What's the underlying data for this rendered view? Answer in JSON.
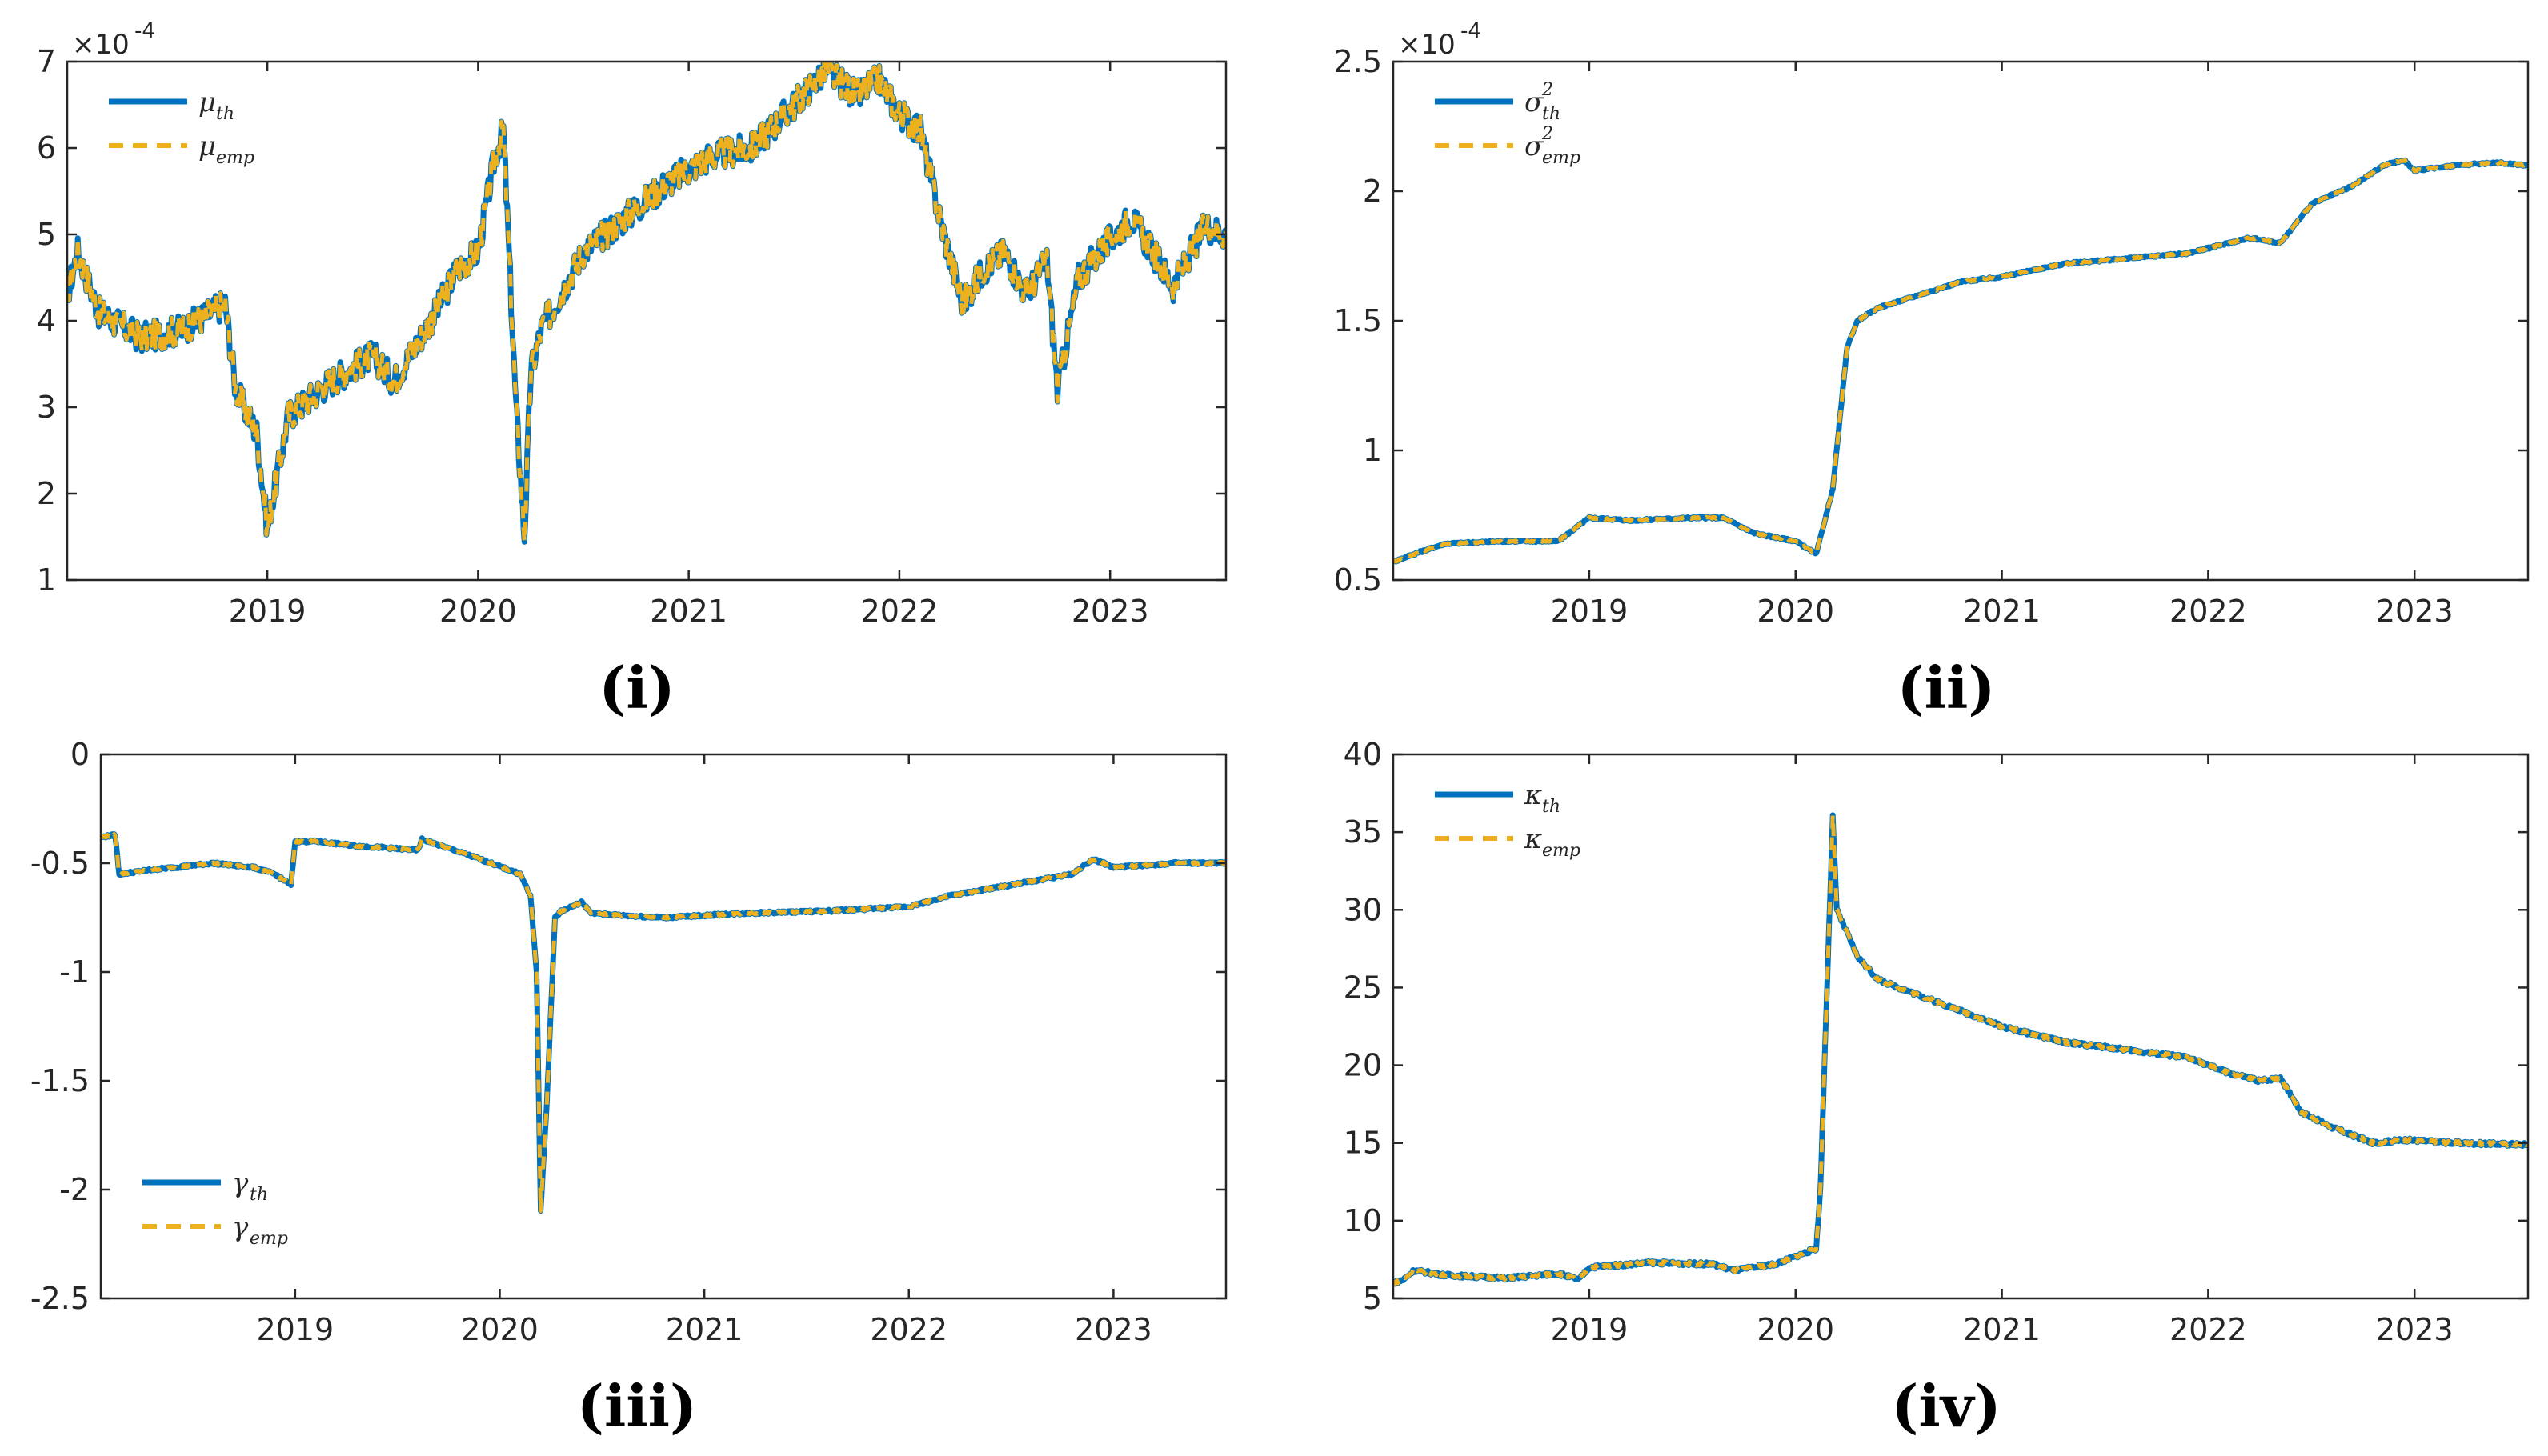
{
  "colors": {
    "theory": "#0072BD",
    "empirical": "#EDB120",
    "axis": "#262626"
  },
  "panel_labels": [
    "(i)",
    "(ii)",
    "(iii)",
    "(iv)"
  ],
  "chart_data": [
    {
      "type": "line",
      "panel": "(i)",
      "exponent_label": "×10",
      "exponent_power": "-4",
      "xlim": [
        2018.05,
        2023.55
      ],
      "ylim": [
        1,
        7
      ],
      "yticks": [
        1,
        2,
        3,
        4,
        5,
        6,
        7
      ],
      "ytick_labels": [
        "1",
        "2",
        "3",
        "4",
        "5",
        "6",
        "7"
      ],
      "xticks": [
        2019,
        2020,
        2021,
        2022,
        2023
      ],
      "xtick_labels": [
        "2019",
        "2020",
        "2021",
        "2022",
        "2023"
      ],
      "legend_location": "top-left",
      "legend": [
        {
          "symbol": "μ",
          "sub": "th",
          "style": "solid"
        },
        {
          "symbol": "μ",
          "sub": "emp",
          "style": "dashed"
        }
      ],
      "noise": 0.18,
      "x": [
        2018.05,
        2018.1,
        2018.2,
        2018.4,
        2018.6,
        2018.8,
        2018.85,
        2018.95,
        2019.0,
        2019.1,
        2019.3,
        2019.5,
        2019.6,
        2019.8,
        2019.9,
        2020.0,
        2020.08,
        2020.12,
        2020.18,
        2020.22,
        2020.25,
        2020.3,
        2020.5,
        2020.7,
        2020.9,
        2021.1,
        2021.3,
        2021.5,
        2021.65,
        2021.8,
        2021.9,
        2022.0,
        2022.1,
        2022.2,
        2022.3,
        2022.4,
        2022.5,
        2022.6,
        2022.7,
        2022.75,
        2022.85,
        2022.95,
        2023.1,
        2023.3,
        2023.45,
        2023.55
      ],
      "y": [
        4.3,
        4.8,
        4.1,
        3.8,
        3.9,
        4.2,
        3.2,
        2.7,
        1.6,
        2.9,
        3.3,
        3.6,
        3.3,
        4.1,
        4.6,
        4.8,
        5.9,
        6.2,
        3.0,
        1.5,
        3.4,
        3.9,
        4.8,
        5.2,
        5.6,
        5.9,
        6.0,
        6.5,
        6.9,
        6.6,
        6.8,
        6.4,
        6.2,
        5.1,
        4.2,
        4.6,
        4.8,
        4.3,
        4.7,
        3.2,
        4.5,
        4.8,
        5.2,
        4.4,
        5.1,
        5.0
      ]
    },
    {
      "type": "line",
      "panel": "(ii)",
      "exponent_label": "×10",
      "exponent_power": "-4",
      "xlim": [
        2018.05,
        2023.55
      ],
      "ylim": [
        0.5,
        2.5
      ],
      "yticks": [
        0.5,
        1,
        1.5,
        2,
        2.5
      ],
      "ytick_labels": [
        "0.5",
        "1",
        "1.5",
        "2",
        "2.5"
      ],
      "xticks": [
        2019,
        2020,
        2021,
        2022,
        2023
      ],
      "xtick_labels": [
        "2019",
        "2020",
        "2021",
        "2022",
        "2023"
      ],
      "legend_location": "top-left",
      "legend": [
        {
          "symbol": "σ",
          "sup": "2",
          "sub": "th",
          "style": "solid"
        },
        {
          "symbol": "σ",
          "sup": "2",
          "sub": "emp",
          "style": "dashed"
        }
      ],
      "noise": 0.004,
      "x": [
        2018.05,
        2018.15,
        2018.3,
        2018.6,
        2018.85,
        2019.0,
        2019.2,
        2019.5,
        2019.65,
        2019.8,
        2020.0,
        2020.1,
        2020.18,
        2020.25,
        2020.3,
        2020.4,
        2020.6,
        2020.8,
        2021.0,
        2021.3,
        2021.6,
        2021.9,
        2022.0,
        2022.2,
        2022.35,
        2022.5,
        2022.7,
        2022.85,
        2022.95,
        2023.0,
        2023.2,
        2023.4,
        2023.55
      ],
      "y": [
        0.57,
        0.6,
        0.64,
        0.65,
        0.65,
        0.74,
        0.73,
        0.74,
        0.74,
        0.68,
        0.65,
        0.6,
        0.85,
        1.4,
        1.5,
        1.55,
        1.6,
        1.65,
        1.67,
        1.72,
        1.74,
        1.76,
        1.78,
        1.82,
        1.8,
        1.95,
        2.02,
        2.1,
        2.12,
        2.08,
        2.1,
        2.11,
        2.1
      ]
    },
    {
      "type": "line",
      "panel": "(iii)",
      "xlim": [
        2018.05,
        2023.55
      ],
      "ylim": [
        -2.5,
        0
      ],
      "yticks": [
        -2.5,
        -2,
        -1.5,
        -1,
        -0.5,
        0
      ],
      "ytick_labels": [
        "-2.5",
        "-2",
        "-1.5",
        "-1",
        "-0.5",
        "0"
      ],
      "xticks": [
        2019,
        2020,
        2021,
        2022,
        2023
      ],
      "xtick_labels": [
        "2019",
        "2020",
        "2021",
        "2022",
        "2023"
      ],
      "legend_location": "bottom-left",
      "legend": [
        {
          "symbol": "γ",
          "sub": "th",
          "style": "solid"
        },
        {
          "symbol": "γ",
          "sub": "emp",
          "style": "dashed"
        }
      ],
      "noise": 0.006,
      "x": [
        2018.05,
        2018.12,
        2018.14,
        2018.3,
        2018.6,
        2018.8,
        2018.9,
        2018.98,
        2019.0,
        2019.1,
        2019.3,
        2019.6,
        2019.62,
        2019.9,
        2020.1,
        2020.15,
        2020.18,
        2020.2,
        2020.23,
        2020.27,
        2020.3,
        2020.4,
        2020.45,
        2020.6,
        2020.8,
        2021.2,
        2021.6,
        2022.0,
        2022.2,
        2022.5,
        2022.8,
        2022.9,
        2023.0,
        2023.3,
        2023.55
      ],
      "y": [
        -0.38,
        -0.37,
        -0.55,
        -0.53,
        -0.5,
        -0.52,
        -0.55,
        -0.6,
        -0.4,
        -0.4,
        -0.42,
        -0.44,
        -0.39,
        -0.48,
        -0.55,
        -0.65,
        -1.0,
        -2.1,
        -1.6,
        -0.75,
        -0.72,
        -0.68,
        -0.73,
        -0.74,
        -0.75,
        -0.73,
        -0.72,
        -0.7,
        -0.65,
        -0.6,
        -0.55,
        -0.48,
        -0.52,
        -0.5,
        -0.5
      ]
    },
    {
      "type": "line",
      "panel": "(iv)",
      "xlim": [
        2018.05,
        2023.55
      ],
      "ylim": [
        5,
        40
      ],
      "yticks": [
        5,
        10,
        15,
        20,
        25,
        30,
        35,
        40
      ],
      "ytick_labels": [
        "5",
        "10",
        "15",
        "20",
        "25",
        "30",
        "35",
        "40"
      ],
      "xticks": [
        2019,
        2020,
        2021,
        2022,
        2023
      ],
      "xtick_labels": [
        "2019",
        "2020",
        "2021",
        "2022",
        "2023"
      ],
      "legend_location": "top-left",
      "legend": [
        {
          "symbol": "κ",
          "sub": "th",
          "style": "solid"
        },
        {
          "symbol": "κ",
          "sub": "emp",
          "style": "dashed"
        }
      ],
      "noise": 0.12,
      "x": [
        2018.05,
        2018.1,
        2018.15,
        2018.3,
        2018.6,
        2018.85,
        2018.95,
        2019.0,
        2019.3,
        2019.6,
        2019.7,
        2019.9,
        2020.1,
        2020.12,
        2020.18,
        2020.2,
        2020.3,
        2020.4,
        2020.5,
        2020.8,
        2021.0,
        2021.3,
        2021.6,
        2021.9,
        2022.1,
        2022.25,
        2022.35,
        2022.45,
        2022.6,
        2022.8,
        2022.95,
        2023.2,
        2023.55
      ],
      "y": [
        6.0,
        6.2,
        6.8,
        6.5,
        6.3,
        6.6,
        6.2,
        7.0,
        7.3,
        7.2,
        6.8,
        7.2,
        8.2,
        12.0,
        36.0,
        30.0,
        27.0,
        25.5,
        25.0,
        23.5,
        22.5,
        21.5,
        21.0,
        20.5,
        19.5,
        19.0,
        19.2,
        17.0,
        16.0,
        15.0,
        15.2,
        15.0,
        14.9
      ]
    }
  ]
}
